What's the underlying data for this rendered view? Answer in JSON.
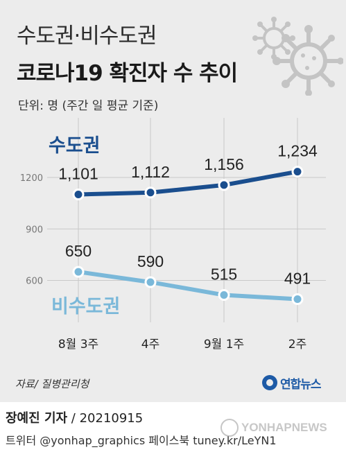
{
  "header": {
    "title_line1": "수도권·비수도권",
    "title_line2": "코로나19 확진자 수 추이",
    "unit_note": "단위: 명 (주간 일 평균 기준)"
  },
  "chart_data": {
    "type": "line",
    "categories": [
      "8월 3주",
      "4주",
      "9월 1주",
      "2주"
    ],
    "series": [
      {
        "name": "수도권",
        "values": [
          1101,
          1112,
          1156,
          1234
        ],
        "labels": [
          "1,101",
          "1,112",
          "1,156",
          "1,234"
        ],
        "color": "#1a4e8e"
      },
      {
        "name": "비수도권",
        "values": [
          650,
          590,
          515,
          491
        ],
        "labels": [
          "650",
          "590",
          "515",
          "491"
        ],
        "color": "#7ab8d9"
      }
    ],
    "yticks": [
      1200,
      900,
      600
    ],
    "ylim": [
      400,
      1380
    ],
    "grid": true,
    "legend": "inline labels"
  },
  "footer": {
    "source": "자료/ 질병관리청",
    "logo_text": "연합뉴스",
    "reporter": "장예진 기자",
    "date": " / 20210915",
    "social": "트위터 @yonhap_graphics  페이스북 tuney.kr/LeYN1",
    "watermark": "YONHAPNEWS"
  },
  "colors": {
    "background": "#ececec",
    "metro_line": "#1a4e8e",
    "nonmetro_line": "#7ab8d9",
    "grid": "#c8c8c8",
    "virus_icon": "#c4c4c4"
  }
}
